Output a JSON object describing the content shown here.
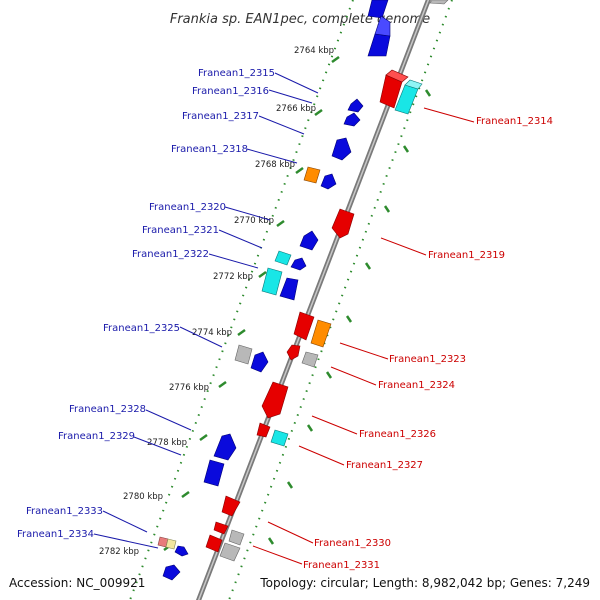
{
  "title": "Frankia sp. EAN1pec, complete genome",
  "footer": {
    "accession": "Accession: NC_009921",
    "topology": "Topology: circular; Length: 8,982,042 bp; Genes: 7,249"
  },
  "colors": {
    "backbone": "#8a8a8a",
    "tick_track": "#2e8b2e",
    "label_forward": "#1a1aaa",
    "label_reverse": "#cc0000",
    "red": "#e60000",
    "blue": "#0a0adc",
    "cyan": "#19e6e6",
    "orange": "#ff8c00",
    "gray": "#b8b8b8"
  },
  "kbp_labels": [
    "2764 kbp",
    "2766 kbp",
    "2768 kbp",
    "2770 kbp",
    "2772 kbp",
    "2774 kbp",
    "2776 kbp",
    "2778 kbp",
    "2780 kbp",
    "2782 kbp"
  ],
  "left_labels": [
    "Franean1_2315",
    "Franean1_2316",
    "Franean1_2317",
    "Franean1_2318",
    "Franean1_2320",
    "Franean1_2321",
    "Franean1_2322",
    "Franean1_2325",
    "Franean1_2328",
    "Franean1_2329",
    "Franean1_2333",
    "Franean1_2334"
  ],
  "right_labels": [
    "Franean1_2314",
    "Franean1_2319",
    "Franean1_2323",
    "Franean1_2324",
    "Franean1_2326",
    "Franean1_2327",
    "Franean1_2330",
    "Franean1_2331"
  ]
}
